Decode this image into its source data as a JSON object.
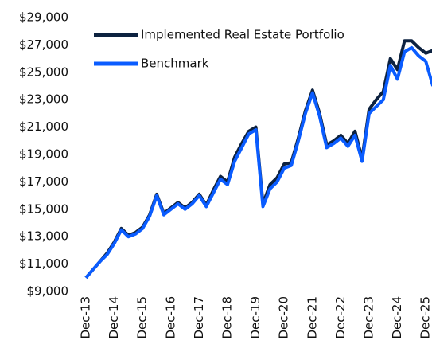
{
  "chart_data": {
    "type": "line",
    "categories": [
      "Dec-13",
      null,
      null,
      null,
      "Dec-14",
      null,
      null,
      null,
      "Dec-15",
      null,
      null,
      null,
      "Dec-16",
      null,
      null,
      null,
      "Dec-17",
      null,
      null,
      null,
      "Dec-18",
      null,
      null,
      null,
      "Dec-19",
      null,
      null,
      null,
      "Dec-20",
      null,
      null,
      null,
      "Dec-21",
      null,
      null,
      null,
      "Dec-22",
      null,
      null,
      null,
      "Dec-23",
      null,
      null,
      null,
      "Dec-24",
      null,
      null,
      null,
      "Dec-25",
      null
    ],
    "series": [
      {
        "name": "Implemented Real Estate Portfolio",
        "color": "#0d2240",
        "values": [
          10000,
          10600,
          11200,
          11800,
          12600,
          13600,
          13100,
          13300,
          13700,
          14600,
          16100,
          14700,
          15100,
          15500,
          15100,
          15500,
          16100,
          15300,
          16400,
          17400,
          17000,
          18800,
          19800,
          20700,
          21000,
          15400,
          16800,
          17300,
          18300,
          18400,
          20200,
          22200,
          23700,
          22000,
          19700,
          20000,
          20400,
          19800,
          20700,
          18700,
          22300,
          23000,
          23600,
          26000,
          25200,
          27300,
          27300,
          26800,
          26400,
          26600
        ]
      },
      {
        "name": "Benchmark",
        "color": "#0a5cff",
        "values": [
          10000,
          10600,
          11200,
          11700,
          12500,
          13500,
          13000,
          13200,
          13600,
          14500,
          16000,
          14600,
          15000,
          15400,
          15000,
          15400,
          16000,
          15200,
          16200,
          17200,
          16800,
          18500,
          19500,
          20500,
          20800,
          15200,
          16500,
          17000,
          18000,
          18200,
          20000,
          22000,
          23500,
          21800,
          19500,
          19800,
          20200,
          19600,
          20400,
          18500,
          22000,
          22500,
          23000,
          25500,
          24500,
          26500,
          26800,
          26200,
          25800,
          24000
        ]
      }
    ],
    "ylim": [
      9000,
      29000
    ],
    "yticks": [
      {
        "value": 9000,
        "label": "$9,000"
      },
      {
        "value": 11000,
        "label": "$11,000"
      },
      {
        "value": 13000,
        "label": "$13,000"
      },
      {
        "value": 15000,
        "label": "$15,000"
      },
      {
        "value": 17000,
        "label": "$17,000"
      },
      {
        "value": 19000,
        "label": "$19,000"
      },
      {
        "value": 21000,
        "label": "$21,000"
      },
      {
        "value": 23000,
        "label": "$23,000"
      },
      {
        "value": 25000,
        "label": "$25,000"
      },
      {
        "value": 27000,
        "label": "$27,000"
      },
      {
        "value": 29000,
        "label": "$29,000"
      }
    ],
    "legend": "upper left"
  }
}
